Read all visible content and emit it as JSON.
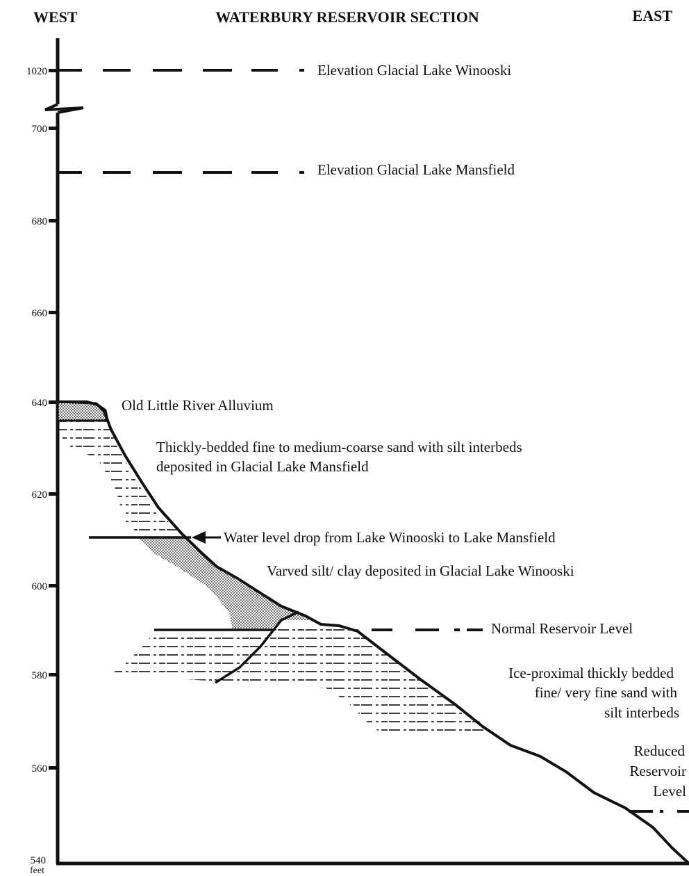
{
  "header": {
    "left": "WEST",
    "title": "WATERBURY RESERVOIR SECTION",
    "right": "EAST"
  },
  "axis": {
    "unit": "feet",
    "ticks": [
      "1020",
      "700",
      "680",
      "660",
      "640",
      "620",
      "600",
      "580",
      "560",
      "540"
    ]
  },
  "labels": {
    "lake_winooski": "Elevation Glacial Lake Winooski",
    "lake_mansfield": "Elevation Glacial Lake Mansfield",
    "alluvium": "Old Little River Alluvium",
    "sand_line1": "Thickly-bedded fine to medium-coarse sand with silt interbeds",
    "sand_line2": "deposited in Glacial Lake Mansfield",
    "water_drop": "Water level drop from Lake Winooski to Lake Mansfield",
    "varved": "Varved silt/ clay deposited in Glacial Lake Winooski",
    "normal_level": "Normal Reservoir Level",
    "ice_line1": "Ice-proximal thickly bedded",
    "ice_line2": "fine/ very fine sand with",
    "ice_line3": "silt interbeds",
    "reduced_line1": "Reduced",
    "reduced_line2": "Reservoir",
    "reduced_line3": "Level"
  },
  "colors": {
    "ink": "#111111",
    "paper": "#ffffff"
  }
}
